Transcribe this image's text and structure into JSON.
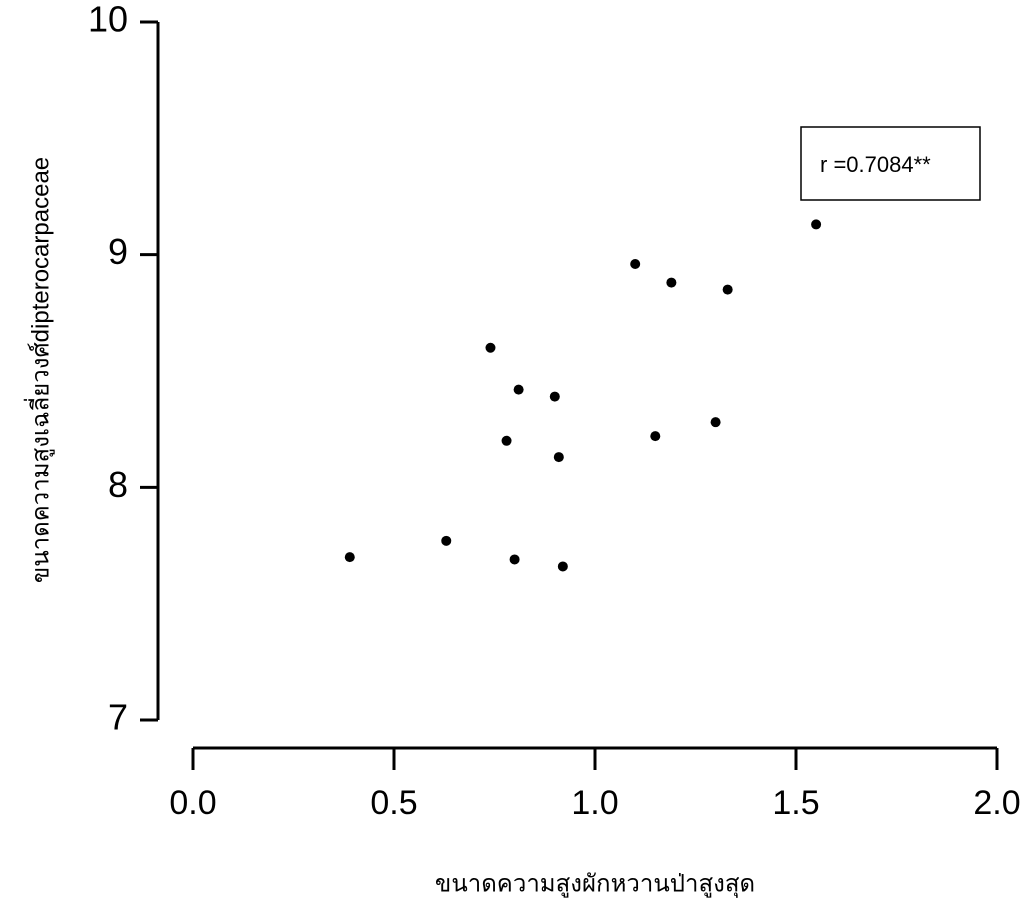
{
  "chart_data": {
    "type": "scatter",
    "x_label": "ขนาดความสูงผักหวานป่าสูงสุด",
    "y_label": "ขนาดความสูงเฉลี่ยวงศ์dipterocarpaceae",
    "annotation": "r =0.7084**",
    "color": "#000000",
    "x": [
      0.39,
      0.63,
      0.74,
      0.78,
      0.8,
      0.81,
      0.9,
      0.91,
      0.92,
      1.1,
      1.15,
      1.19,
      1.3,
      1.33,
      1.55
    ],
    "values": [
      7.7,
      7.77,
      8.6,
      8.2,
      7.69,
      8.42,
      8.39,
      8.13,
      7.66,
      8.96,
      8.22,
      8.88,
      8.28,
      8.85,
      9.13
    ],
    "xlim": [
      0,
      2
    ],
    "ylim": [
      7,
      10
    ],
    "xticks": [
      {
        "value": 0,
        "label": "0.0"
      },
      0.5,
      {
        "value": 1,
        "label": "1.0"
      },
      1.5,
      {
        "value": 2,
        "label": "2.0"
      }
    ],
    "yticks": [
      7,
      8,
      9,
      10
    ]
  }
}
